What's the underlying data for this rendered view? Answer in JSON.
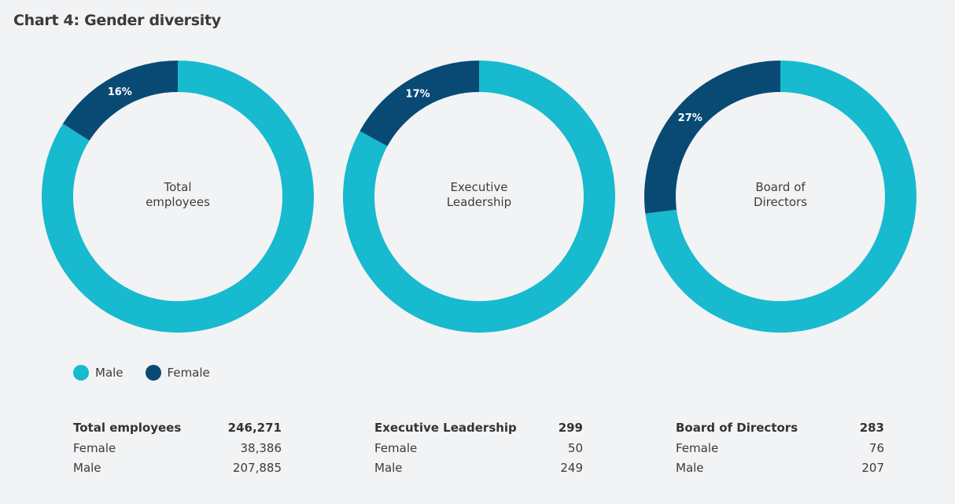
{
  "title": "Chart 4: Gender diversity",
  "colors": {
    "male": "#17bace",
    "female": "#084a74",
    "background": "#f2f3f5"
  },
  "legend": [
    {
      "label": "Male",
      "color": "#17bace"
    },
    {
      "label": "Female",
      "color": "#084a74"
    }
  ],
  "chart_data": {
    "type": "pie",
    "title": "Chart 4: Gender diversity",
    "legend_position": "bottom-left",
    "charts": [
      {
        "center_label": [
          "Total",
          "employees"
        ],
        "female_pct": 16,
        "female_pct_label": "16%",
        "male_pct": 84
      },
      {
        "center_label": [
          "Executive",
          "Leadership"
        ],
        "female_pct": 17,
        "female_pct_label": "17%",
        "male_pct": 83
      },
      {
        "center_label": [
          "Board of",
          "Directors"
        ],
        "female_pct": 27,
        "female_pct_label": "27%",
        "male_pct": 73
      }
    ]
  },
  "tables": [
    {
      "heading": "Total employees",
      "total": "246,271",
      "rows": [
        {
          "label": "Female",
          "value": "38,386"
        },
        {
          "label": "Male",
          "value": "207,885"
        }
      ]
    },
    {
      "heading": "Executive Leadership",
      "total": "299",
      "rows": [
        {
          "label": "Female",
          "value": "50"
        },
        {
          "label": "Male",
          "value": "249"
        }
      ]
    },
    {
      "heading": "Board of Directors",
      "total": "283",
      "rows": [
        {
          "label": "Female",
          "value": "76"
        },
        {
          "label": "Male",
          "value": "207"
        }
      ]
    }
  ]
}
